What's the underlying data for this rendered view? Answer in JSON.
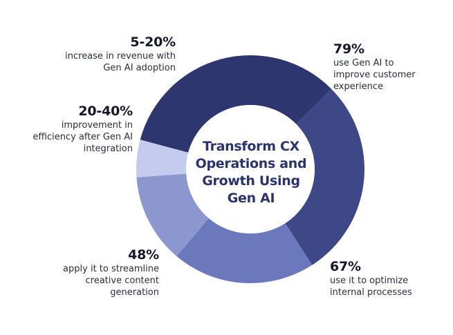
{
  "chart_data": {
    "type": "pie",
    "style": "donut",
    "title_lines": [
      "Transform CX",
      "Operations and",
      "Growth Using",
      "Gen AI"
    ],
    "slices": [
      {
        "value_label": "79%",
        "value": 79,
        "description": "use Gen AI to improve customer experience",
        "color": "#2e3670"
      },
      {
        "value_label": "67%",
        "value": 67,
        "description": "use it to optimize internal processes",
        "color": "#3f4887"
      },
      {
        "value_label": "48%",
        "value": 48,
        "description": "apply it to streamline creative content generation",
        "color": "#6b78bc"
      },
      {
        "value_label": "20-40%",
        "value": 30,
        "description": "improvement in efficiency after Gen AI integration",
        "color": "#8d97cf"
      },
      {
        "value_label": "5-20%",
        "value": 12.5,
        "description": "increase in revenue with Gen AI adoption",
        "color": "#c5cbef"
      }
    ],
    "legend": "none",
    "grid": false
  }
}
